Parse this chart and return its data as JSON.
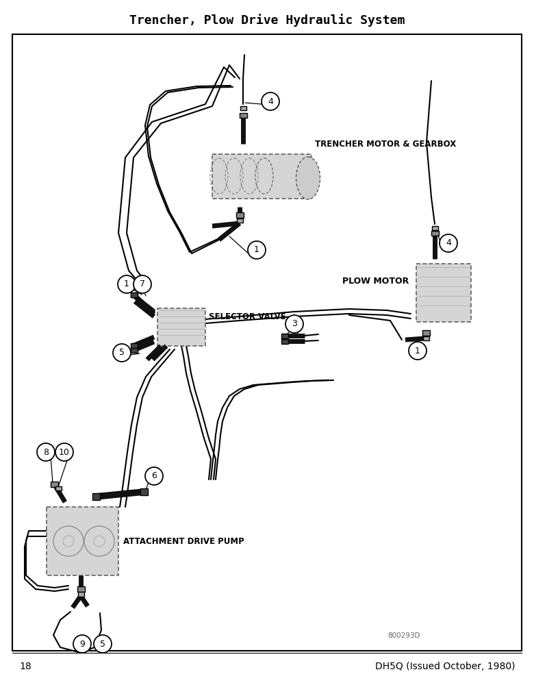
{
  "title": "Trencher, Plow Drive Hydraulic System",
  "page_num": "18",
  "footer_right": "DH5Q (Issued October, 1980)",
  "part_num": "800293D",
  "labels": {
    "trencher_motor": "TRENCHER MOTOR & GEARBOX",
    "plow_motor": "PLOW MOTOR",
    "selector_valve": "SELECTOR VALVE",
    "attachment_pump": "ATTACHMENT DRIVE PUMP"
  },
  "bg": "#e8e8e8",
  "diagram_bg": "#f5f5f5"
}
